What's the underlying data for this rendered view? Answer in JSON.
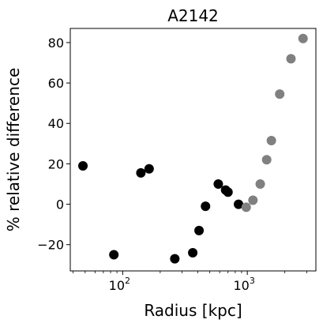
{
  "chart_data": {
    "type": "scatter",
    "title": "A2142",
    "xlabel": "Radius [kpc]",
    "ylabel": "% relative difference",
    "xscale": "log",
    "xlim": [
      38,
      3550
    ],
    "ylim": [
      -33,
      87
    ],
    "grid": false,
    "legend": "none",
    "x_ticks": [
      {
        "value": 100,
        "base": "10",
        "exp": "2"
      },
      {
        "value": 1000,
        "base": "10",
        "exp": "3"
      }
    ],
    "y_ticks": [
      {
        "value": -20,
        "label": "−20"
      },
      {
        "value": 0,
        "label": "0"
      },
      {
        "value": 20,
        "label": "20"
      },
      {
        "value": 40,
        "label": "40"
      },
      {
        "value": 60,
        "label": "60"
      },
      {
        "value": 80,
        "label": "80"
      }
    ],
    "series": [
      {
        "color": "#000000",
        "x": [
          48,
          85,
          140,
          163,
          262,
          365,
          410,
          462,
          585,
          670,
          700,
          850
        ],
        "y": [
          19,
          -25,
          15.5,
          17.5,
          -27,
          -24,
          -13,
          -1,
          10,
          7,
          6,
          0
        ]
      },
      {
        "color": "#808080",
        "x": [
          980,
          1110,
          1270,
          1430,
          1560,
          1820,
          2240,
          2800
        ],
        "y": [
          -1.5,
          2,
          10,
          22,
          31.5,
          54.5,
          72,
          82
        ]
      }
    ]
  }
}
